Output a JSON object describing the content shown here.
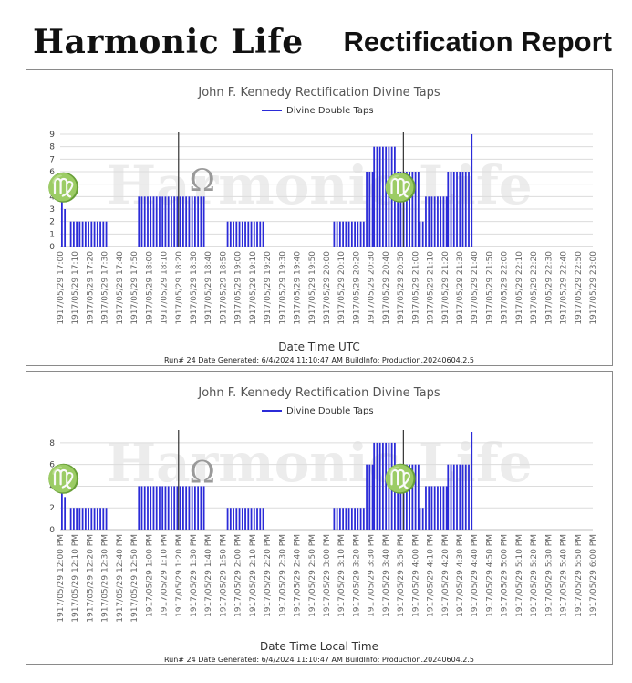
{
  "header": {
    "logo_text": "Harmonic Life",
    "report_title": "Rectification Report"
  },
  "chart_data": [
    {
      "type": "bar",
      "title": "John F. Kennedy Rectification Divine Taps",
      "legend": "Divine Double Taps",
      "legend_position": "top-center",
      "xlabel": "Date Time UTC",
      "ylabel": "",
      "ylim": [
        0,
        9
      ],
      "yticks": [
        0,
        1,
        2,
        3,
        4,
        5,
        6,
        7,
        8,
        9
      ],
      "grid": true,
      "bar_color": "#2b2bd8",
      "ticks": [
        "1917/05/29 17:00",
        "1917/05/29 17:10",
        "1917/05/29 17:20",
        "1917/05/29 17:30",
        "1917/05/29 17:40",
        "1917/05/29 17:50",
        "1917/05/29 18:00",
        "1917/05/29 18:10",
        "1917/05/29 18:20",
        "1917/05/29 18:30",
        "1917/05/29 18:40",
        "1917/05/29 18:50",
        "1917/05/29 19:00",
        "1917/05/29 19:10",
        "1917/05/29 19:20",
        "1917/05/29 19:30",
        "1917/05/29 19:40",
        "1917/05/29 19:50",
        "1917/05/29 20:00",
        "1917/05/29 20:10",
        "1917/05/29 20:20",
        "1917/05/29 20:30",
        "1917/05/29 20:40",
        "1917/05/29 20:50",
        "1917/05/29 21:00",
        "1917/05/29 21:10",
        "1917/05/29 21:20",
        "1917/05/29 21:30",
        "1917/05/29 21:40",
        "1917/05/29 21:50",
        "1917/05/29 22:00",
        "1917/05/29 22:10",
        "1917/05/29 22:20",
        "1917/05/29 22:30",
        "1917/05/29 22:40",
        "1917/05/29 22:50",
        "1917/05/29 23:00"
      ],
      "x_minutes_range": [
        0,
        360
      ],
      "segments": [
        {
          "x": [
            0,
            1
          ],
          "value": 5
        },
        {
          "x": [
            2,
            3
          ],
          "value": 3
        },
        {
          "x": [
            6,
            30
          ],
          "value": 2
        },
        {
          "x": [
            52,
            96
          ],
          "value": 4
        },
        {
          "x": [
            112,
            136
          ],
          "value": 2
        },
        {
          "x": [
            184,
            199
          ],
          "value": 2
        },
        {
          "x": [
            200,
            205
          ],
          "value": 2
        },
        {
          "x": [
            206,
            210
          ],
          "value": 6
        },
        {
          "x": [
            211,
            226
          ],
          "value": 8
        },
        {
          "x": [
            227,
            241
          ],
          "value": 6
        },
        {
          "x": [
            242,
            244
          ],
          "value": 2
        },
        {
          "x": [
            246,
            260
          ],
          "value": 4
        },
        {
          "x": [
            261,
            276
          ],
          "value": 6
        },
        {
          "x": [
            277,
            277
          ],
          "value": 9
        }
      ],
      "vertical_lines": [
        80,
        232
      ],
      "markers": [
        {
          "glyph": "♍",
          "x": 1,
          "level": 5
        },
        {
          "glyph": "Ω",
          "x": 96,
          "level": 5.5
        },
        {
          "glyph": "♍",
          "x": 229,
          "level": 5
        }
      ],
      "footer": "Run# 24 Date Generated: 6/4/2024 11:10:47 AM BuildInfo: Production.20240604.2.5"
    },
    {
      "type": "bar",
      "title": "John F. Kennedy Rectification Divine Taps",
      "legend": "Divine Double Taps",
      "legend_position": "top-center",
      "xlabel": "Date Time Local Time",
      "ylabel": "",
      "ylim": [
        0,
        9
      ],
      "yticks": [
        0,
        2,
        4,
        6,
        8
      ],
      "grid": true,
      "bar_color": "#2b2bd8",
      "ticks": [
        "1917/05/29 12:00 PM",
        "1917/05/29 12:10 PM",
        "1917/05/29 12:20 PM",
        "1917/05/29 12:30 PM",
        "1917/05/29 12:40 PM",
        "1917/05/29 12:50 PM",
        "1917/05/29 1:00 PM",
        "1917/05/29 1:10 PM",
        "1917/05/29 1:20 PM",
        "1917/05/29 1:30 PM",
        "1917/05/29 1:40 PM",
        "1917/05/29 1:50 PM",
        "1917/05/29 2:00 PM",
        "1917/05/29 2:10 PM",
        "1917/05/29 2:20 PM",
        "1917/05/29 2:30 PM",
        "1917/05/29 2:40 PM",
        "1917/05/29 2:50 PM",
        "1917/05/29 3:00 PM",
        "1917/05/29 3:10 PM",
        "1917/05/29 3:20 PM",
        "1917/05/29 3:30 PM",
        "1917/05/29 3:40 PM",
        "1917/05/29 3:50 PM",
        "1917/05/29 4:00 PM",
        "1917/05/29 4:10 PM",
        "1917/05/29 4:20 PM",
        "1917/05/29 4:30 PM",
        "1917/05/29 4:40 PM",
        "1917/05/29 4:50 PM",
        "1917/05/29 5:00 PM",
        "1917/05/29 5:10 PM",
        "1917/05/29 5:20 PM",
        "1917/05/29 5:30 PM",
        "1917/05/29 5:40 PM",
        "1917/05/29 5:50 PM",
        "1917/05/29 6:00 PM"
      ],
      "x_minutes_range": [
        0,
        360
      ],
      "segments": [
        {
          "x": [
            0,
            1
          ],
          "value": 5
        },
        {
          "x": [
            2,
            3
          ],
          "value": 3
        },
        {
          "x": [
            6,
            30
          ],
          "value": 2
        },
        {
          "x": [
            52,
            96
          ],
          "value": 4
        },
        {
          "x": [
            112,
            136
          ],
          "value": 2
        },
        {
          "x": [
            184,
            199
          ],
          "value": 2
        },
        {
          "x": [
            200,
            205
          ],
          "value": 2
        },
        {
          "x": [
            206,
            210
          ],
          "value": 6
        },
        {
          "x": [
            211,
            226
          ],
          "value": 8
        },
        {
          "x": [
            227,
            241
          ],
          "value": 6
        },
        {
          "x": [
            242,
            244
          ],
          "value": 2
        },
        {
          "x": [
            246,
            260
          ],
          "value": 4
        },
        {
          "x": [
            261,
            276
          ],
          "value": 6
        },
        {
          "x": [
            277,
            277
          ],
          "value": 9
        }
      ],
      "vertical_lines": [
        80,
        232
      ],
      "markers": [
        {
          "glyph": "♍",
          "x": 1,
          "level": 5
        },
        {
          "glyph": "Ω",
          "x": 96,
          "level": 5.5
        },
        {
          "glyph": "♍",
          "x": 229,
          "level": 5
        }
      ],
      "footer": "Run# 24 Date Generated: 6/4/2024 11:10:47 AM BuildInfo: Production.20240604.2.5"
    }
  ]
}
